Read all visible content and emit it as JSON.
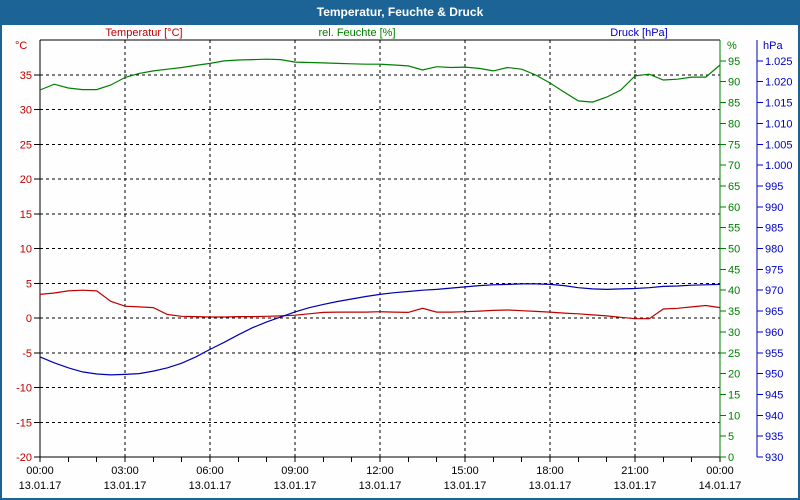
{
  "window": {
    "title": "Temperatur, Feuchte & Druck"
  },
  "legend": {
    "temperature": "Temperatur [°C]",
    "humidity": "rel. Feuchte [%]",
    "pressure": "Druck [hPa]"
  },
  "axis_units": {
    "left": "°C",
    "right_inner": "%",
    "right_outer": "hPa"
  },
  "colors": {
    "title_bar": "#1d6496",
    "frame_border": "#1d6496",
    "background": "#fdfefd",
    "grid": "#000000",
    "x_labels": "#000000",
    "temperature": "#c00000",
    "humidity": "#008000",
    "pressure_curve": "#0000b0",
    "pressure_labels": "#0000c8"
  },
  "chart_data": {
    "type": "line",
    "title": "Temperatur, Feuchte & Druck",
    "x_unit": "hours",
    "x_range_hours": [
      0,
      24
    ],
    "x_minor_tick_hours": 1,
    "grid": {
      "h_lines_temp": [
        35,
        30,
        25,
        20,
        15,
        10,
        5,
        0,
        -5,
        -10,
        -15
      ],
      "v_lines_hours": [
        3,
        6,
        9,
        12,
        15,
        18,
        21
      ]
    },
    "x_ticks": [
      {
        "hour": 0,
        "time": "00:00",
        "date": "13.01.17"
      },
      {
        "hour": 3,
        "time": "03:00",
        "date": "13.01.17"
      },
      {
        "hour": 6,
        "time": "06:00",
        "date": "13.01.17"
      },
      {
        "hour": 9,
        "time": "09:00",
        "date": "13.01.17"
      },
      {
        "hour": 12,
        "time": "12:00",
        "date": "13.01.17"
      },
      {
        "hour": 15,
        "time": "15:00",
        "date": "13.01.17"
      },
      {
        "hour": 18,
        "time": "18:00",
        "date": "13.01.17"
      },
      {
        "hour": 21,
        "time": "21:00",
        "date": "13.01.17"
      },
      {
        "hour": 24,
        "time": "00:00",
        "date": "14.01.17"
      }
    ],
    "axes": {
      "temp": {
        "unit": "°C",
        "color": "#c00000",
        "range": [
          -20,
          40
        ],
        "tick_values": [
          35,
          30,
          25,
          20,
          15,
          10,
          5,
          0,
          -5,
          -10,
          -15,
          -20
        ],
        "tick_labels": [
          "35",
          "30",
          "25",
          "20",
          "15",
          "10",
          "5",
          "0",
          "-5",
          "-10",
          "-15",
          "-20"
        ]
      },
      "humidity": {
        "unit": "%",
        "color": "#008000",
        "range": [
          0,
          100
        ],
        "tick_values": [
          95,
          90,
          85,
          80,
          75,
          70,
          65,
          60,
          55,
          50,
          45,
          40,
          35,
          30,
          25,
          20,
          15,
          10,
          5,
          0
        ],
        "tick_labels": [
          "95",
          "90",
          "85",
          "80",
          "75",
          "70",
          "65",
          "60",
          "55",
          "50",
          "45",
          "40",
          "35",
          "30",
          "25",
          "20",
          "15",
          "10",
          "5",
          "0"
        ]
      },
      "pressure": {
        "unit": "hPa",
        "color": "#0000c8",
        "range": [
          930,
          1030
        ],
        "tick_values": [
          1025,
          1020,
          1015,
          1010,
          1005,
          1000,
          995,
          990,
          985,
          980,
          975,
          970,
          965,
          960,
          955,
          950,
          945,
          940,
          935,
          930
        ],
        "tick_labels": [
          "1.025",
          "1.020",
          "1.015",
          "1.010",
          "1.005",
          "1.000",
          "995",
          "990",
          "985",
          "980",
          "975",
          "970",
          "965",
          "960",
          "955",
          "950",
          "945",
          "940",
          "935",
          "930"
        ]
      }
    },
    "x": [
      0,
      0.5,
      1,
      1.5,
      2,
      2.5,
      3,
      3.5,
      4,
      4.5,
      5,
      5.5,
      6,
      6.5,
      7,
      7.5,
      8,
      8.5,
      9,
      9.5,
      10,
      10.5,
      11,
      11.5,
      12,
      12.5,
      13,
      13.5,
      14,
      14.5,
      15,
      15.5,
      16,
      16.5,
      17,
      17.5,
      18,
      18.5,
      19,
      19.5,
      20,
      20.5,
      21,
      21.5,
      22,
      22.5,
      23,
      23.5,
      24
    ],
    "series": [
      {
        "name": "Temperatur [°C]",
        "axis": "temp",
        "color": "#c00000",
        "values": [
          3.4,
          3.6,
          3.9,
          4.0,
          3.9,
          2.4,
          1.7,
          1.6,
          1.5,
          0.5,
          0.25,
          0.2,
          0.15,
          0.15,
          0.2,
          0.2,
          0.25,
          0.3,
          0.4,
          0.6,
          0.8,
          0.85,
          0.85,
          0.85,
          0.9,
          0.85,
          0.8,
          1.4,
          0.85,
          0.85,
          0.9,
          1.0,
          1.1,
          1.15,
          1.05,
          0.95,
          0.85,
          0.7,
          0.6,
          0.45,
          0.3,
          0.1,
          -0.1,
          -0.1,
          1.3,
          1.4,
          1.6,
          1.8,
          1.5
        ]
      },
      {
        "name": "rel. Feuchte [%]",
        "axis": "humidity",
        "color": "#008000",
        "values": [
          88.0,
          89.4,
          88.5,
          88.1,
          88.1,
          89.2,
          91.0,
          92.0,
          92.6,
          93.0,
          93.4,
          93.9,
          94.4,
          95.0,
          95.2,
          95.3,
          95.4,
          95.3,
          94.7,
          94.6,
          94.5,
          94.4,
          94.3,
          94.2,
          94.2,
          94.0,
          93.8,
          92.8,
          93.6,
          93.4,
          93.5,
          93.2,
          92.6,
          93.4,
          93.0,
          91.6,
          89.7,
          87.5,
          85.4,
          85.1,
          86.3,
          88.0,
          91.4,
          91.8,
          90.4,
          90.6,
          91.1,
          91.1,
          94.0
        ]
      },
      {
        "name": "Druck [hPa]",
        "axis": "pressure",
        "color": "#0000b0",
        "values": [
          954.0,
          952.6,
          951.4,
          950.4,
          949.9,
          949.7,
          949.8,
          950.0,
          950.6,
          951.4,
          952.5,
          954.0,
          955.8,
          957.5,
          959.3,
          961.0,
          962.4,
          963.6,
          964.8,
          965.8,
          966.6,
          967.3,
          967.9,
          968.5,
          969.0,
          969.4,
          969.7,
          970.0,
          970.2,
          970.5,
          970.8,
          971.1,
          971.3,
          971.4,
          971.5,
          971.5,
          971.4,
          971.1,
          970.6,
          970.3,
          970.2,
          970.3,
          970.4,
          970.6,
          970.9,
          971.0,
          971.2,
          971.3,
          971.4
        ]
      }
    ]
  }
}
